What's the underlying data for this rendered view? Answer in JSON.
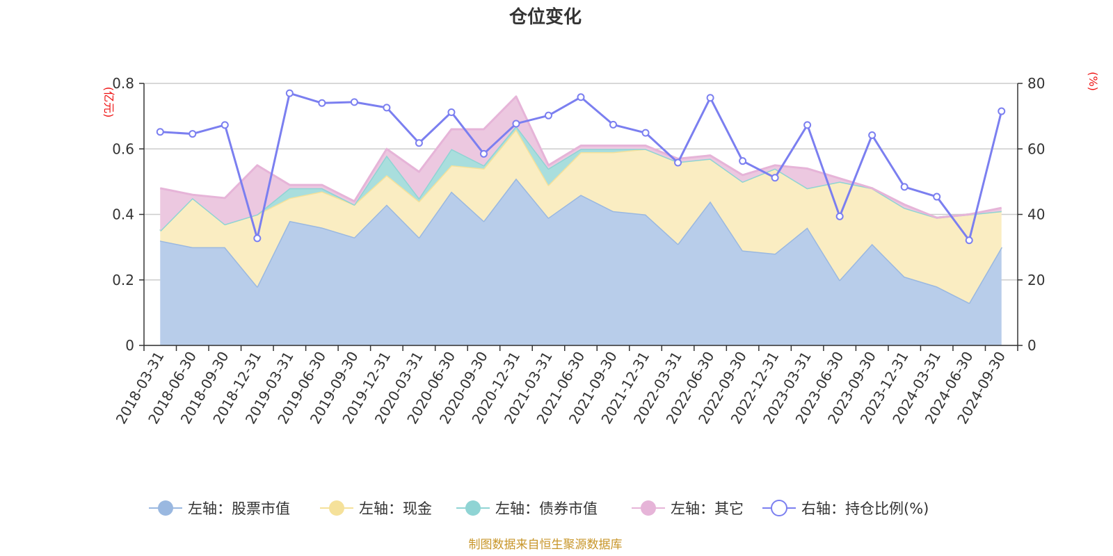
{
  "chart_data": {
    "type": "area",
    "title": "仓位变化",
    "source": "制图数据来自恒生聚源数据库",
    "left_axis": {
      "unit": "(亿元)",
      "min": 0,
      "max": 0.8,
      "ticks": [
        "0",
        "0.2",
        "0.4",
        "0.6",
        "0.8"
      ]
    },
    "right_axis": {
      "unit": "(%)",
      "min": 0,
      "max": 80,
      "ticks": [
        "0",
        "20",
        "40",
        "60",
        "80"
      ]
    },
    "grid": true,
    "legend_position": "bottom",
    "categories": [
      "2018-03-31",
      "2018-06-30",
      "2018-09-30",
      "2018-12-31",
      "2019-03-31",
      "2019-06-30",
      "2019-09-30",
      "2019-12-31",
      "2020-03-31",
      "2020-06-30",
      "2020-09-30",
      "2020-12-31",
      "2021-03-31",
      "2021-06-30",
      "2021-09-30",
      "2021-12-31",
      "2022-03-31",
      "2022-06-30",
      "2022-09-30",
      "2022-12-31",
      "2023-03-31",
      "2023-06-30",
      "2023-09-30",
      "2023-12-31",
      "2024-03-31",
      "2024-06-30",
      "2024-09-30"
    ],
    "series": [
      {
        "name": "左轴：股票市值",
        "axis": "left",
        "kind": "stacked-area",
        "color": "#9ab8e0",
        "fill": "#b8cdea",
        "values": [
          0.32,
          0.3,
          0.3,
          0.18,
          0.38,
          0.36,
          0.33,
          0.43,
          0.33,
          0.47,
          0.38,
          0.51,
          0.39,
          0.46,
          0.41,
          0.4,
          0.31,
          0.44,
          0.29,
          0.28,
          0.36,
          0.2,
          0.31,
          0.21,
          0.18,
          0.13,
          0.3
        ]
      },
      {
        "name": "左轴：现金",
        "axis": "left",
        "kind": "stacked-area",
        "color": "#f5e19a",
        "fill": "#faedc2",
        "values": [
          0.03,
          0.15,
          0.07,
          0.22,
          0.07,
          0.11,
          0.1,
          0.09,
          0.11,
          0.08,
          0.16,
          0.15,
          0.1,
          0.13,
          0.18,
          0.2,
          0.25,
          0.13,
          0.21,
          0.26,
          0.12,
          0.3,
          0.17,
          0.21,
          0.21,
          0.27,
          0.11
        ]
      },
      {
        "name": "左轴：债券市值",
        "axis": "left",
        "kind": "stacked-area",
        "color": "#8fd4d4",
        "fill": "#a9dedd",
        "values": [
          0,
          0,
          0,
          0,
          0.03,
          0.01,
          0,
          0.06,
          0.01,
          0.05,
          0.01,
          0.01,
          0.05,
          0.01,
          0.01,
          0,
          0,
          0,
          0,
          0,
          0,
          0,
          0,
          0,
          0,
          0,
          0
        ]
      },
      {
        "name": "左轴：其它",
        "axis": "left",
        "kind": "stacked-area",
        "color": "#e6b4d8",
        "fill": "#ecc8e0",
        "values": [
          0.13,
          0.01,
          0.08,
          0.15,
          0.01,
          0.01,
          0.01,
          0.02,
          0.08,
          0.06,
          0.11,
          0.09,
          0.01,
          0.01,
          0.01,
          0.01,
          0.01,
          0.01,
          0.02,
          0.01,
          0.06,
          0.01,
          0,
          0.01,
          0,
          0,
          0.01
        ]
      },
      {
        "name": "右轴：持仓比例(%)",
        "axis": "right",
        "kind": "line",
        "color": "#7b7ff0",
        "values": [
          65.2,
          64.6,
          67.3,
          32.7,
          77,
          74,
          74.3,
          72.6,
          61.8,
          71.2,
          58.5,
          67.7,
          70.2,
          75.8,
          67.4,
          64.9,
          55.8,
          75.6,
          56.3,
          51.2,
          67.3,
          39.4,
          64.2,
          48.4,
          45.4,
          32.1,
          71.5
        ]
      }
    ]
  }
}
